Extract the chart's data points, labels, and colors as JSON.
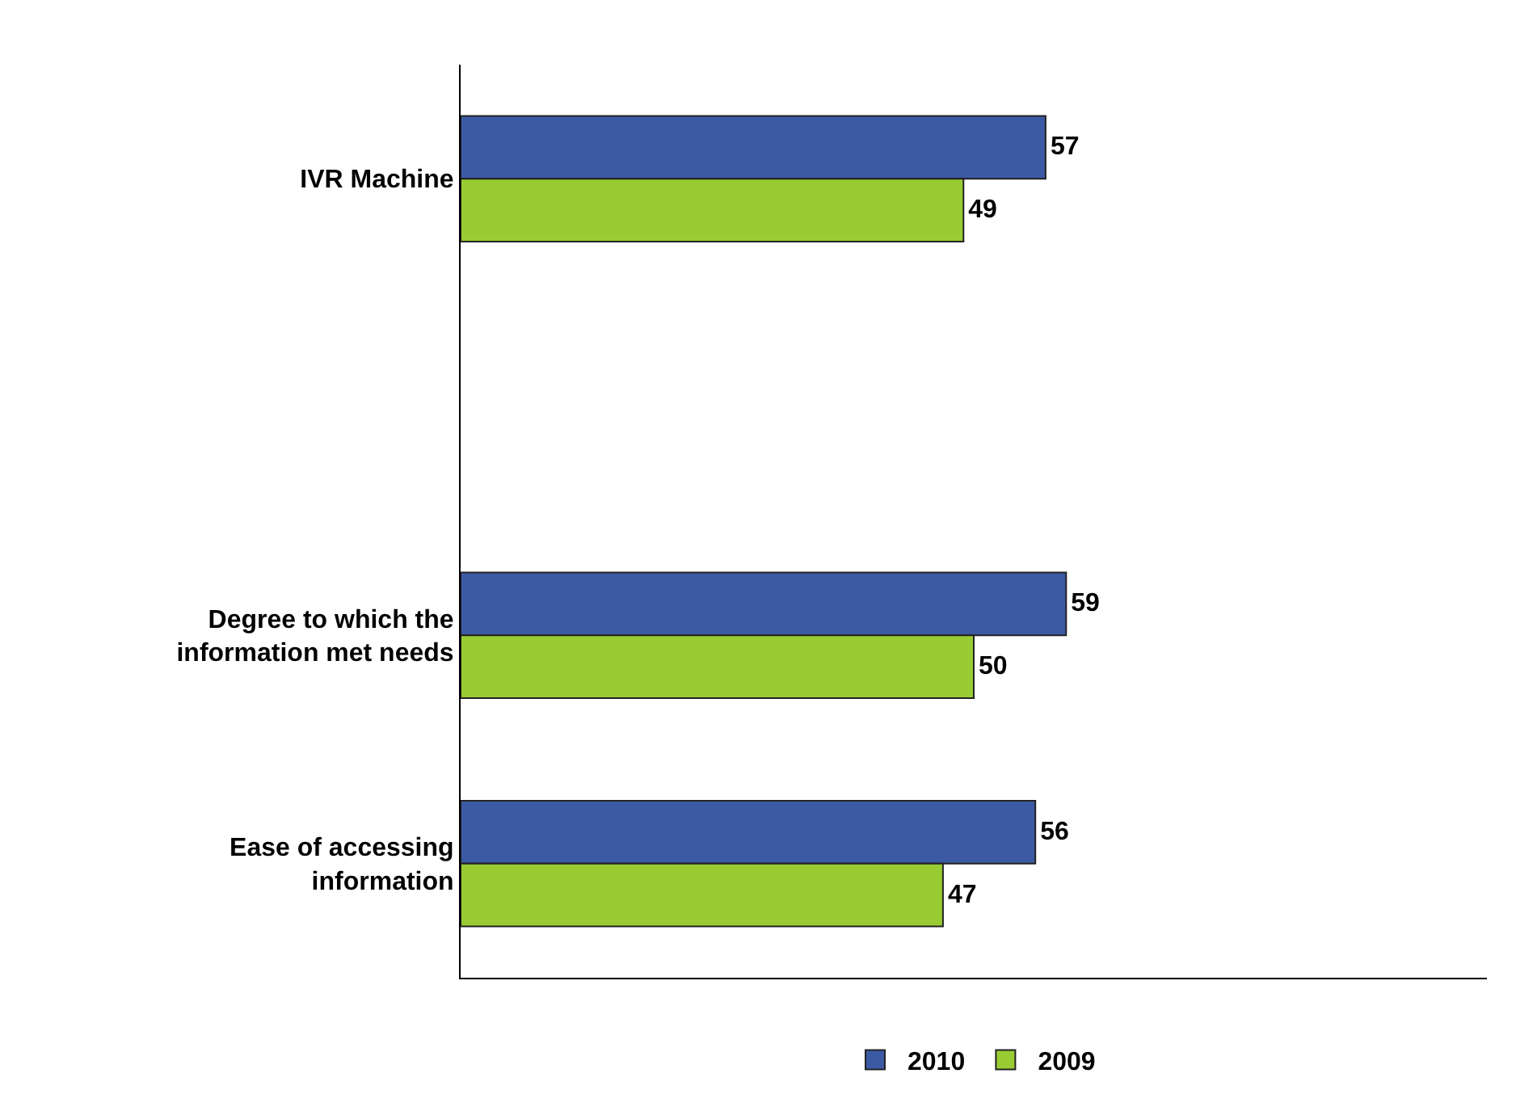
{
  "chart_data": {
    "type": "bar",
    "orientation": "horizontal",
    "categories": [
      "IVR Machine",
      null,
      "Degree to which the information met needs",
      "Ease of accessing information"
    ],
    "series": [
      {
        "name": "2010",
        "color": "#3c5aa4",
        "values": [
          57,
          null,
          59,
          56
        ]
      },
      {
        "name": "2009",
        "color": "#99cc33",
        "values": [
          49,
          null,
          50,
          47
        ]
      }
    ],
    "xlim": [
      0,
      100
    ],
    "data_labels": true,
    "legend": "bottom",
    "tick_labels": "y"
  }
}
